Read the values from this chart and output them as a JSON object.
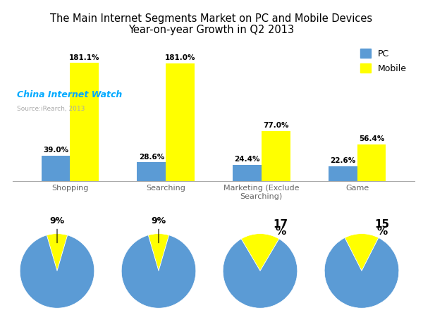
{
  "title_line1": "The Main Internet Segments Market on PC and Mobile Devices",
  "title_line2": "Year-on-year Growth in Q2 2013",
  "categories": [
    "Shopping",
    "Searching",
    "Marketing (Exclude\nSearching)",
    "Game"
  ],
  "pc_values": [
    39.0,
    28.6,
    24.4,
    22.6
  ],
  "mobile_values": [
    181.1,
    181.0,
    77.0,
    56.4
  ],
  "pc_color": "#5B9BD5",
  "mobile_color": "#FFFF00",
  "watermark_text": "China Internet Watch",
  "watermark_color": "#00AAFF",
  "source_text": "Source:iRearch, 2013",
  "source_color": "#AAAAAA",
  "legend_pc": "PC",
  "legend_mobile": "Mobile",
  "pie_mobile_pct": [
    9,
    9,
    17,
    15
  ],
  "pie_label_top": [
    "9%",
    "9%",
    "17",
    "15"
  ],
  "pie_label_bot": [
    "",
    "",
    "%",
    "%"
  ],
  "background_color": "#FFFFFF"
}
